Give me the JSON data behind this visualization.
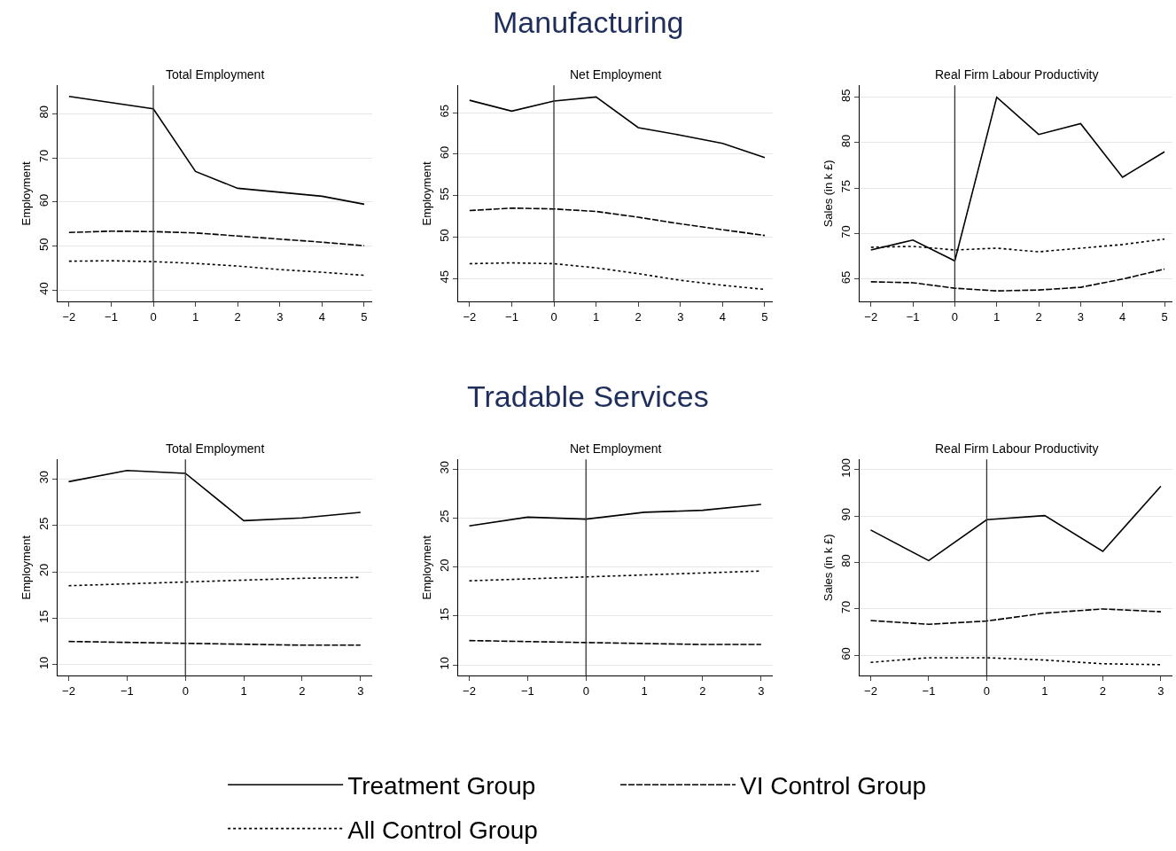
{
  "chart_data": [
    {
      "type": "line",
      "title": "Total Employment",
      "ylabel": "Employment",
      "annotations": [
        "Manufacturing"
      ],
      "x": [
        -2,
        -1,
        0,
        1,
        2,
        3,
        4,
        5
      ],
      "xlim": [
        -2.27,
        5.19
      ],
      "xticks": [
        -2,
        -1,
        0,
        1,
        2,
        3,
        4,
        5
      ],
      "ylim": [
        37.4,
        86.4
      ],
      "yticks": [
        40,
        50,
        60,
        70,
        80
      ],
      "grid": "y",
      "legend": "bottom",
      "ref_lines": [
        {
          "axis": "x",
          "value": 0,
          "color": "#333333"
        }
      ],
      "series": [
        {
          "name": "Treatment Group",
          "color": "#000000",
          "line_style": "solid",
          "values": [
            83.9,
            82.5,
            81.1,
            66.9,
            63.1,
            62.2,
            61.3,
            59.5
          ]
        },
        {
          "name": "VI Control Group",
          "color": "#000000",
          "line_style": "dashed",
          "values": [
            53.1,
            53.4,
            53.3,
            53.0,
            52.3,
            51.6,
            50.9,
            50.1
          ]
        },
        {
          "name": "All Control Group",
          "color": "#000000",
          "line_style": "dotted",
          "values": [
            46.6,
            46.7,
            46.5,
            46.1,
            45.5,
            44.7,
            44.1,
            43.4
          ]
        }
      ]
    },
    {
      "type": "line",
      "title": "Net Employment",
      "ylabel": "Employment",
      "x": [
        -2,
        -1,
        0,
        1,
        2,
        3,
        4,
        5
      ],
      "xlim": [
        -2.27,
        5.19
      ],
      "xticks": [
        -2,
        -1,
        0,
        1,
        2,
        3,
        4,
        5
      ],
      "ylim": [
        42.2,
        68.3
      ],
      "yticks": [
        45,
        50,
        55,
        60,
        65
      ],
      "grid": "y",
      "ref_lines": [
        {
          "axis": "x",
          "value": 0,
          "color": "#333333"
        }
      ],
      "series": [
        {
          "color": "#000000",
          "line_style": "solid",
          "values": [
            66.5,
            65.2,
            66.4,
            66.9,
            63.2,
            62.3,
            61.3,
            59.6
          ]
        },
        {
          "color": "#000000",
          "line_style": "dashed",
          "values": [
            53.2,
            53.5,
            53.4,
            53.1,
            52.4,
            51.6,
            50.9,
            50.2
          ]
        },
        {
          "color": "#000000",
          "line_style": "dotted",
          "values": [
            46.8,
            46.9,
            46.8,
            46.3,
            45.6,
            44.8,
            44.2,
            43.7
          ]
        }
      ]
    },
    {
      "type": "line",
      "title": "Real Firm Labour Productivity",
      "ylabel": "Sales (in k £)",
      "x": [
        -2,
        -1,
        0,
        1,
        2,
        3,
        4,
        5
      ],
      "xlim": [
        -2.27,
        5.19
      ],
      "xticks": [
        -2,
        -1,
        0,
        1,
        2,
        3,
        4,
        5
      ],
      "ylim": [
        62.5,
        86.3
      ],
      "yticks": [
        65,
        70,
        75,
        80,
        85
      ],
      "grid": "y",
      "ref_lines": [
        {
          "axis": "x",
          "value": 0,
          "color": "#333333"
        }
      ],
      "series": [
        {
          "color": "#000000",
          "line_style": "solid",
          "values": [
            68.2,
            69.3,
            67.0,
            85.0,
            80.9,
            82.1,
            76.2,
            79.0
          ]
        },
        {
          "color": "#000000",
          "line_style": "dashed",
          "values": [
            64.7,
            64.6,
            64.0,
            63.7,
            63.8,
            64.1,
            65.0,
            66.1
          ]
        },
        {
          "color": "#000000",
          "line_style": "dotted",
          "values": [
            68.5,
            68.6,
            68.2,
            68.4,
            68.0,
            68.4,
            68.8,
            69.4
          ]
        }
      ]
    },
    {
      "type": "line",
      "title": "Total Employment",
      "ylabel": "Employment",
      "annotations": [
        "Tradable Services"
      ],
      "x": [
        -2,
        -1,
        0,
        1,
        2,
        3
      ],
      "xlim": [
        -2.19,
        3.2
      ],
      "xticks": [
        -2,
        -1,
        0,
        1,
        2,
        3
      ],
      "ylim": [
        8.8,
        32.1
      ],
      "yticks": [
        10,
        15,
        20,
        25,
        30
      ],
      "grid": "y",
      "ref_lines": [
        {
          "axis": "x",
          "value": 0,
          "color": "#333333"
        }
      ],
      "series": [
        {
          "color": "#000000",
          "line_style": "solid",
          "values": [
            29.7,
            30.9,
            30.6,
            25.5,
            25.8,
            26.4
          ]
        },
        {
          "color": "#000000",
          "line_style": "dashed",
          "values": [
            12.5,
            12.4,
            12.3,
            12.2,
            12.1,
            12.1
          ]
        },
        {
          "color": "#000000",
          "line_style": "dotted",
          "values": [
            18.5,
            18.7,
            18.9,
            19.1,
            19.3,
            19.4
          ]
        }
      ]
    },
    {
      "type": "line",
      "title": "Net Employment",
      "ylabel": "Employment",
      "x": [
        -2,
        -1,
        0,
        1,
        2,
        3
      ],
      "xlim": [
        -2.19,
        3.2
      ],
      "xticks": [
        -2,
        -1,
        0,
        1,
        2,
        3
      ],
      "ylim": [
        8.9,
        31.0
      ],
      "yticks": [
        10,
        15,
        20,
        25,
        30
      ],
      "grid": "y",
      "ref_lines": [
        {
          "axis": "x",
          "value": 0,
          "color": "#333333"
        }
      ],
      "series": [
        {
          "color": "#000000",
          "line_style": "solid",
          "values": [
            24.2,
            25.1,
            24.9,
            25.6,
            25.8,
            26.4
          ]
        },
        {
          "color": "#000000",
          "line_style": "dashed",
          "values": [
            12.5,
            12.4,
            12.3,
            12.2,
            12.1,
            12.1
          ]
        },
        {
          "color": "#000000",
          "line_style": "dotted",
          "values": [
            18.6,
            18.8,
            19.0,
            19.2,
            19.4,
            19.6
          ]
        }
      ]
    },
    {
      "type": "line",
      "title": "Real Firm Labour Productivity",
      "ylabel": "Sales (in k £)",
      "x": [
        -2,
        -1,
        0,
        1,
        2,
        3
      ],
      "xlim": [
        -2.19,
        3.2
      ],
      "xticks": [
        -2,
        -1,
        0,
        1,
        2,
        3
      ],
      "ylim": [
        55.6,
        102.2
      ],
      "yticks": [
        60,
        70,
        80,
        90,
        100
      ],
      "grid": "y",
      "ref_lines": [
        {
          "axis": "x",
          "value": 0,
          "color": "#333333"
        }
      ],
      "series": [
        {
          "color": "#000000",
          "line_style": "solid",
          "values": [
            87.0,
            80.4,
            89.2,
            90.1,
            82.4,
            96.4
          ]
        },
        {
          "color": "#000000",
          "line_style": "dashed",
          "values": [
            67.5,
            66.7,
            67.4,
            69.1,
            70.0,
            69.4
          ]
        },
        {
          "color": "#000000",
          "line_style": "dotted",
          "values": [
            58.5,
            59.5,
            59.5,
            59.0,
            58.2,
            58.0
          ]
        }
      ]
    }
  ]
}
